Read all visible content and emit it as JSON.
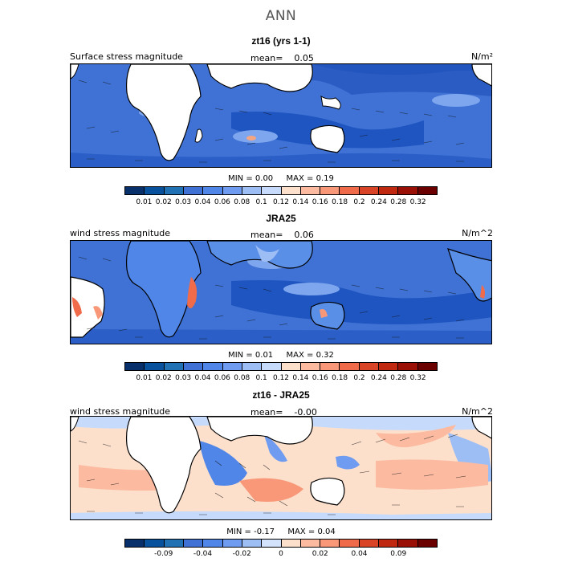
{
  "page": {
    "title": "ANN"
  },
  "panels": [
    {
      "title": "zt16 (yrs 1-1)",
      "variable": "Surface stress magnitude",
      "mean_label": "mean=",
      "mean_value": "0.05",
      "units": "N/m²",
      "min_label": "MIN =",
      "min_value": "0.00",
      "max_label": "MAX =",
      "max_value": "0.19",
      "colorbar": {
        "colors": [
          "#08306b",
          "#08519c",
          "#2171b5",
          "#3f72d4",
          "#4f86e8",
          "#6f9cf0",
          "#9dbdf5",
          "#c6dbfb",
          "#fde0cc",
          "#fcbba1",
          "#f89878",
          "#ef6b4a",
          "#d94426",
          "#c0280f",
          "#9a1006",
          "#6b0000"
        ],
        "ticks": [
          "0.01",
          "0.02",
          "0.03",
          "0.04",
          "0.06",
          "0.08",
          "0.1",
          "0.12",
          "0.14",
          "0.16",
          "0.18",
          "0.2",
          "0.24",
          "0.28",
          "0.32"
        ]
      }
    },
    {
      "title": "JRA25",
      "variable": "wind stress magnitude",
      "mean_label": "mean=",
      "mean_value": "0.06",
      "units": "N/m^2",
      "min_label": "MIN =",
      "min_value": "0.01",
      "max_label": "MAX =",
      "max_value": "0.32",
      "colorbar": {
        "colors": [
          "#08306b",
          "#08519c",
          "#2171b5",
          "#3f72d4",
          "#4f86e8",
          "#6f9cf0",
          "#9dbdf5",
          "#c6dbfb",
          "#fde0cc",
          "#fcbba1",
          "#f89878",
          "#ef6b4a",
          "#d94426",
          "#c0280f",
          "#9a1006",
          "#6b0000"
        ],
        "ticks": [
          "0.01",
          "0.02",
          "0.03",
          "0.04",
          "0.06",
          "0.08",
          "0.1",
          "0.12",
          "0.14",
          "0.16",
          "0.18",
          "0.2",
          "0.24",
          "0.28",
          "0.32"
        ]
      }
    },
    {
      "title": "zt16 - JRA25",
      "variable": "wind stress magnitude",
      "mean_label": "mean=",
      "mean_value": "-0.00",
      "units": "N/m^2",
      "min_label": "MIN =",
      "min_value": "-0.17",
      "max_label": "MAX =",
      "max_value": "0.04",
      "colorbar": {
        "colors": [
          "#08306b",
          "#08519c",
          "#2171b5",
          "#3f72d4",
          "#4f86e8",
          "#6f9cf0",
          "#9dbdf5",
          "#d3e3fb",
          "#fde0cc",
          "#fcbba1",
          "#f89878",
          "#ef6b4a",
          "#d94426",
          "#c0280f",
          "#9a1006",
          "#6b0000"
        ],
        "ticks": [
          "-0.09",
          "-0.04",
          "-0.02",
          "0",
          "0.02",
          "0.04",
          "0.09"
        ]
      }
    }
  ]
}
